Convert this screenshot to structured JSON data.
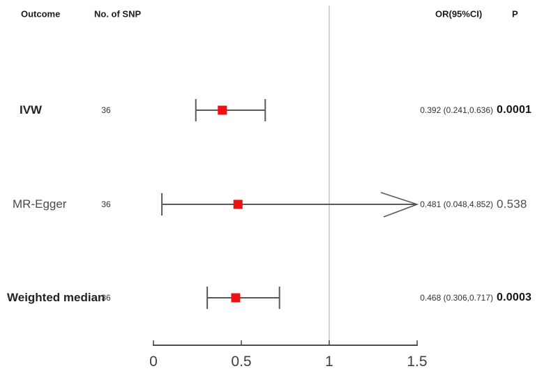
{
  "header": {
    "outcome": "Outcome",
    "no_of_snp": "No. of SNP",
    "or_ci": "OR(95%CI)",
    "p": "P"
  },
  "chart_data": {
    "type": "scatter",
    "subtype": "forest-plot",
    "title": "",
    "x_axis": {
      "min": 0,
      "max": 1.5,
      "tick_values": [
        0,
        0.5,
        1,
        1.5
      ],
      "tick_labels": [
        "0",
        "0.5",
        "1",
        "1.5"
      ],
      "reference_line": 1
    },
    "rows": [
      {
        "label": "IVW",
        "n_snp": "36",
        "or": 0.392,
        "ci_low": 0.241,
        "ci_high": 0.636,
        "or_ci_label": "0.392 (0.241,0.636)",
        "p": "0.0001",
        "significant": true,
        "ci_exceeds_axis": false
      },
      {
        "label": "MR-Egger",
        "n_snp": "36",
        "or": 0.481,
        "ci_low": 0.048,
        "ci_high": 4.852,
        "or_ci_label": "0.481 (0.048,4.852)",
        "p": "0.538",
        "significant": false,
        "ci_exceeds_axis": true
      },
      {
        "label": "Weighted median",
        "n_snp": "36",
        "or": 0.468,
        "ci_low": 0.306,
        "ci_high": 0.717,
        "or_ci_label": "0.468 (0.306,0.717)",
        "p": "0.0003",
        "significant": true,
        "ci_exceeds_axis": false
      }
    ],
    "colors": {
      "marker": "#ee1111",
      "ci_line": "#595959",
      "axis": "#4d4d4d",
      "reference_line": "#c9c9c9",
      "tick_text": "#3f3f3f"
    },
    "legend": null,
    "grid": false
  }
}
